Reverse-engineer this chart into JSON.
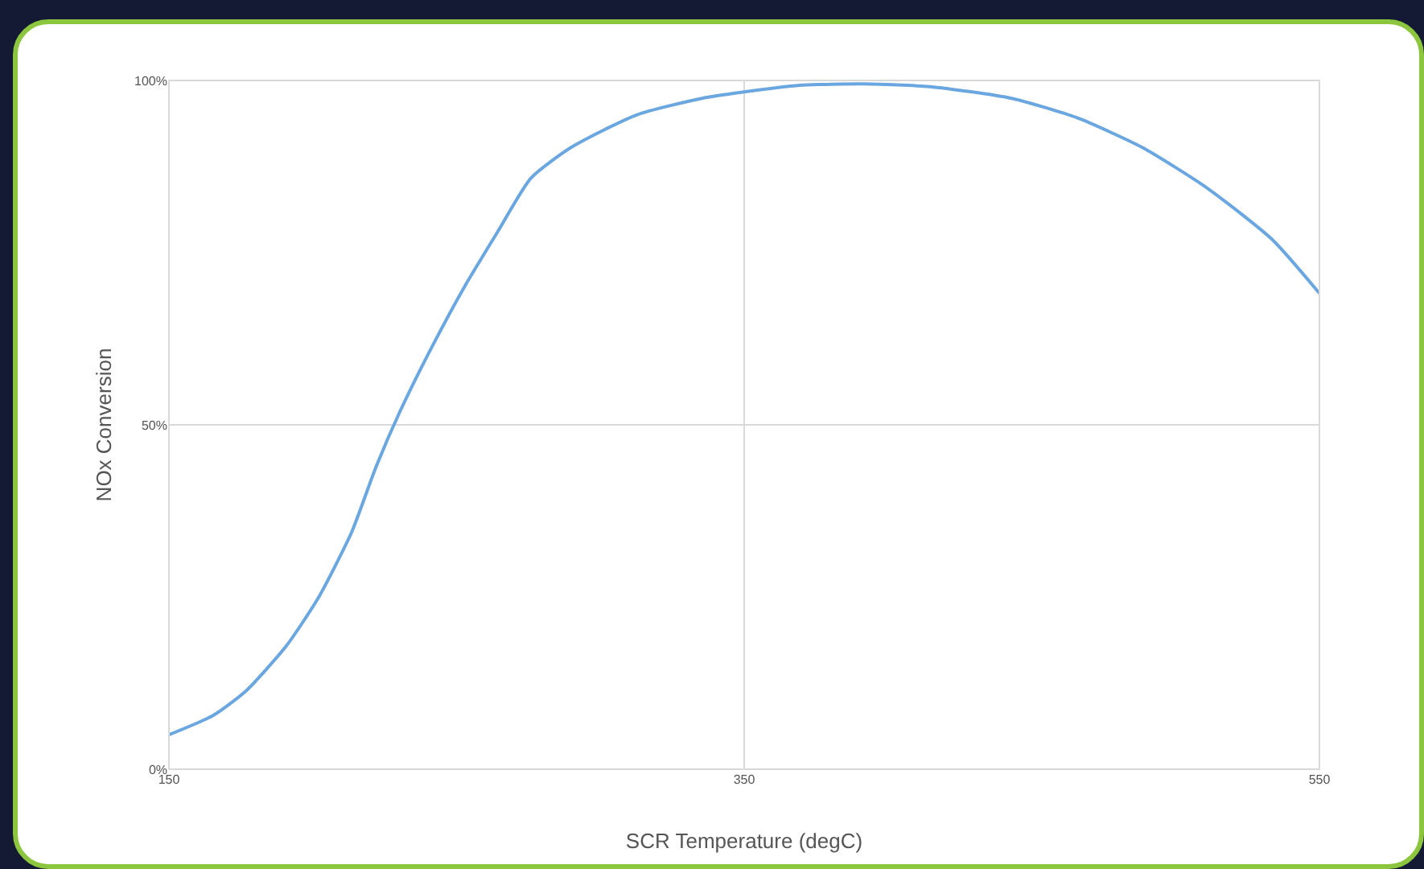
{
  "chart_data": {
    "type": "line",
    "xlabel": "SCR Temperature (degC)",
    "ylabel": "NOx Conversion",
    "series": [
      {
        "color": "#6aa6e0",
        "x": [
          150,
          165.3,
          176.6,
          190.8,
          202.1,
          213.5,
          222,
          230.5,
          241.8,
          253.1,
          264.4,
          275.8,
          289.9,
          312.6,
          335.3,
          349.4,
          369.3,
          392,
          414.6,
          443,
          465.6,
          488.3,
          510.9,
          533.6,
          550
        ],
        "values": [
          5,
          7.8,
          11.3,
          17.9,
          25,
          34.4,
          43.9,
          52.1,
          61.6,
          70.3,
          78.1,
          85.8,
          90.3,
          95,
          97.4,
          98.3,
          99.3,
          99.5,
          99.1,
          97.4,
          94.6,
          90.3,
          84.4,
          76.9,
          69.1
        ]
      }
    ],
    "xlim": [
      150,
      550
    ],
    "xticks": [
      150,
      350,
      550
    ],
    "ylim": [
      0,
      100
    ],
    "yticks": [
      {
        "value": 0,
        "label": "0%"
      },
      {
        "value": 50,
        "label": "50%"
      },
      {
        "value": 100,
        "label": "100%"
      }
    ],
    "grid": true,
    "marker": "none",
    "line_style": "solid"
  }
}
